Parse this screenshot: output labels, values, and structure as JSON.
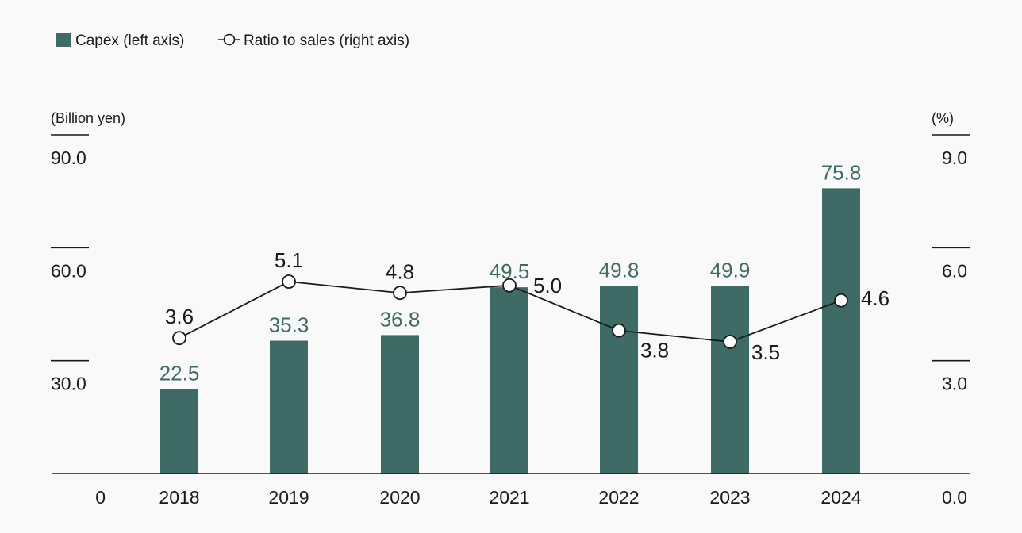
{
  "chart_data": {
    "type": "bar",
    "categories": [
      "2018",
      "2019",
      "2020",
      "2021",
      "2022",
      "2023",
      "2024"
    ],
    "series": [
      {
        "name": "Capex (left axis)",
        "type": "bar",
        "axis": "left",
        "values": [
          22.5,
          35.3,
          36.8,
          49.5,
          49.8,
          49.9,
          75.8
        ],
        "labels": [
          "22.5",
          "35.3",
          "36.8",
          "49.5",
          "49.8",
          "49.9",
          "75.8"
        ]
      },
      {
        "name": "Ratio to sales (right axis)",
        "type": "line",
        "axis": "right",
        "values": [
          3.6,
          5.1,
          4.8,
          5.0,
          3.8,
          3.5,
          4.6
        ],
        "labels": [
          "3.6",
          "5.1",
          "4.8",
          "5.0",
          "3.8",
          "3.5",
          "4.6"
        ]
      }
    ],
    "left_axis": {
      "label": "(Billion yen)",
      "range": [
        0,
        90
      ],
      "ticks": [
        0,
        30,
        60,
        90
      ],
      "tick_labels": [
        "0",
        "30.0",
        "60.0",
        "90.0"
      ]
    },
    "right_axis": {
      "label": "(%)",
      "range": [
        0,
        9
      ],
      "ticks": [
        0,
        3,
        6,
        9
      ],
      "tick_labels": [
        "0.0",
        "3.0",
        "6.0",
        "9.0"
      ]
    },
    "grid": false,
    "legend_position": "top-left",
    "colors": {
      "bar": "#3e6b65",
      "bar_label": "#3e6b65",
      "line": "#1a1a1a",
      "marker_fill": "#ffffff",
      "background": "#f9f9f9"
    }
  }
}
